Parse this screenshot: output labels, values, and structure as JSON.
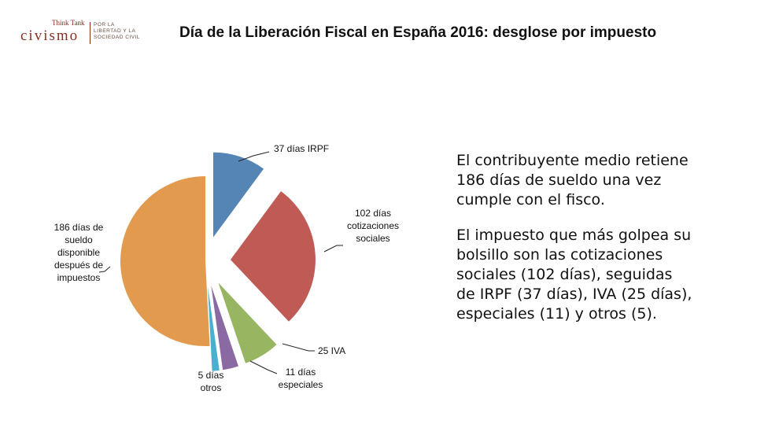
{
  "logo": {
    "think_tank": "Think Tank",
    "brand": "civismo",
    "tagline": [
      "POR LA",
      "LIBERTAD Y LA",
      "SOCIEDAD CIVIL"
    ]
  },
  "title": "Día de la Liberación Fiscal en España 2016: desglose por impuesto",
  "chart_data": {
    "type": "pie",
    "title": "Día de la Liberación Fiscal en España 2016: desglose por impuesto",
    "slices": [
      {
        "label": [
          "37 días IRPF"
        ],
        "value": 37,
        "color": "#5585b5",
        "explode": true
      },
      {
        "label": [
          "102 días",
          "cotizaciones",
          "sociales"
        ],
        "value": 102,
        "color": "#bf5a55",
        "explode": true
      },
      {
        "label": [
          "25 IVA"
        ],
        "value": 25,
        "color": "#98b561",
        "explode": true
      },
      {
        "label": [
          "11 días",
          "especiales"
        ],
        "value": 11,
        "color": "#8b6aa4",
        "explode": true
      },
      {
        "label": [
          "5 días",
          "otros"
        ],
        "value": 5,
        "color": "#4ab0cf",
        "explode": true
      },
      {
        "label": [
          "186 días de",
          "sueldo",
          "disponible",
          "después de",
          "impuestos"
        ],
        "value": 186,
        "color": "#e29a4e",
        "explode": false
      }
    ]
  },
  "sidebar": {
    "paragraph_1": "El contribuyente medio retiene 186 días de sueldo una vez cumple con el fisco.",
    "paragraph_2": "El impuesto que más golpea su bolsillo son las cotizaciones sociales (102 días), seguidas de IRPF (37 días), IVA (25 días), especiales (11) y otros (5)."
  }
}
